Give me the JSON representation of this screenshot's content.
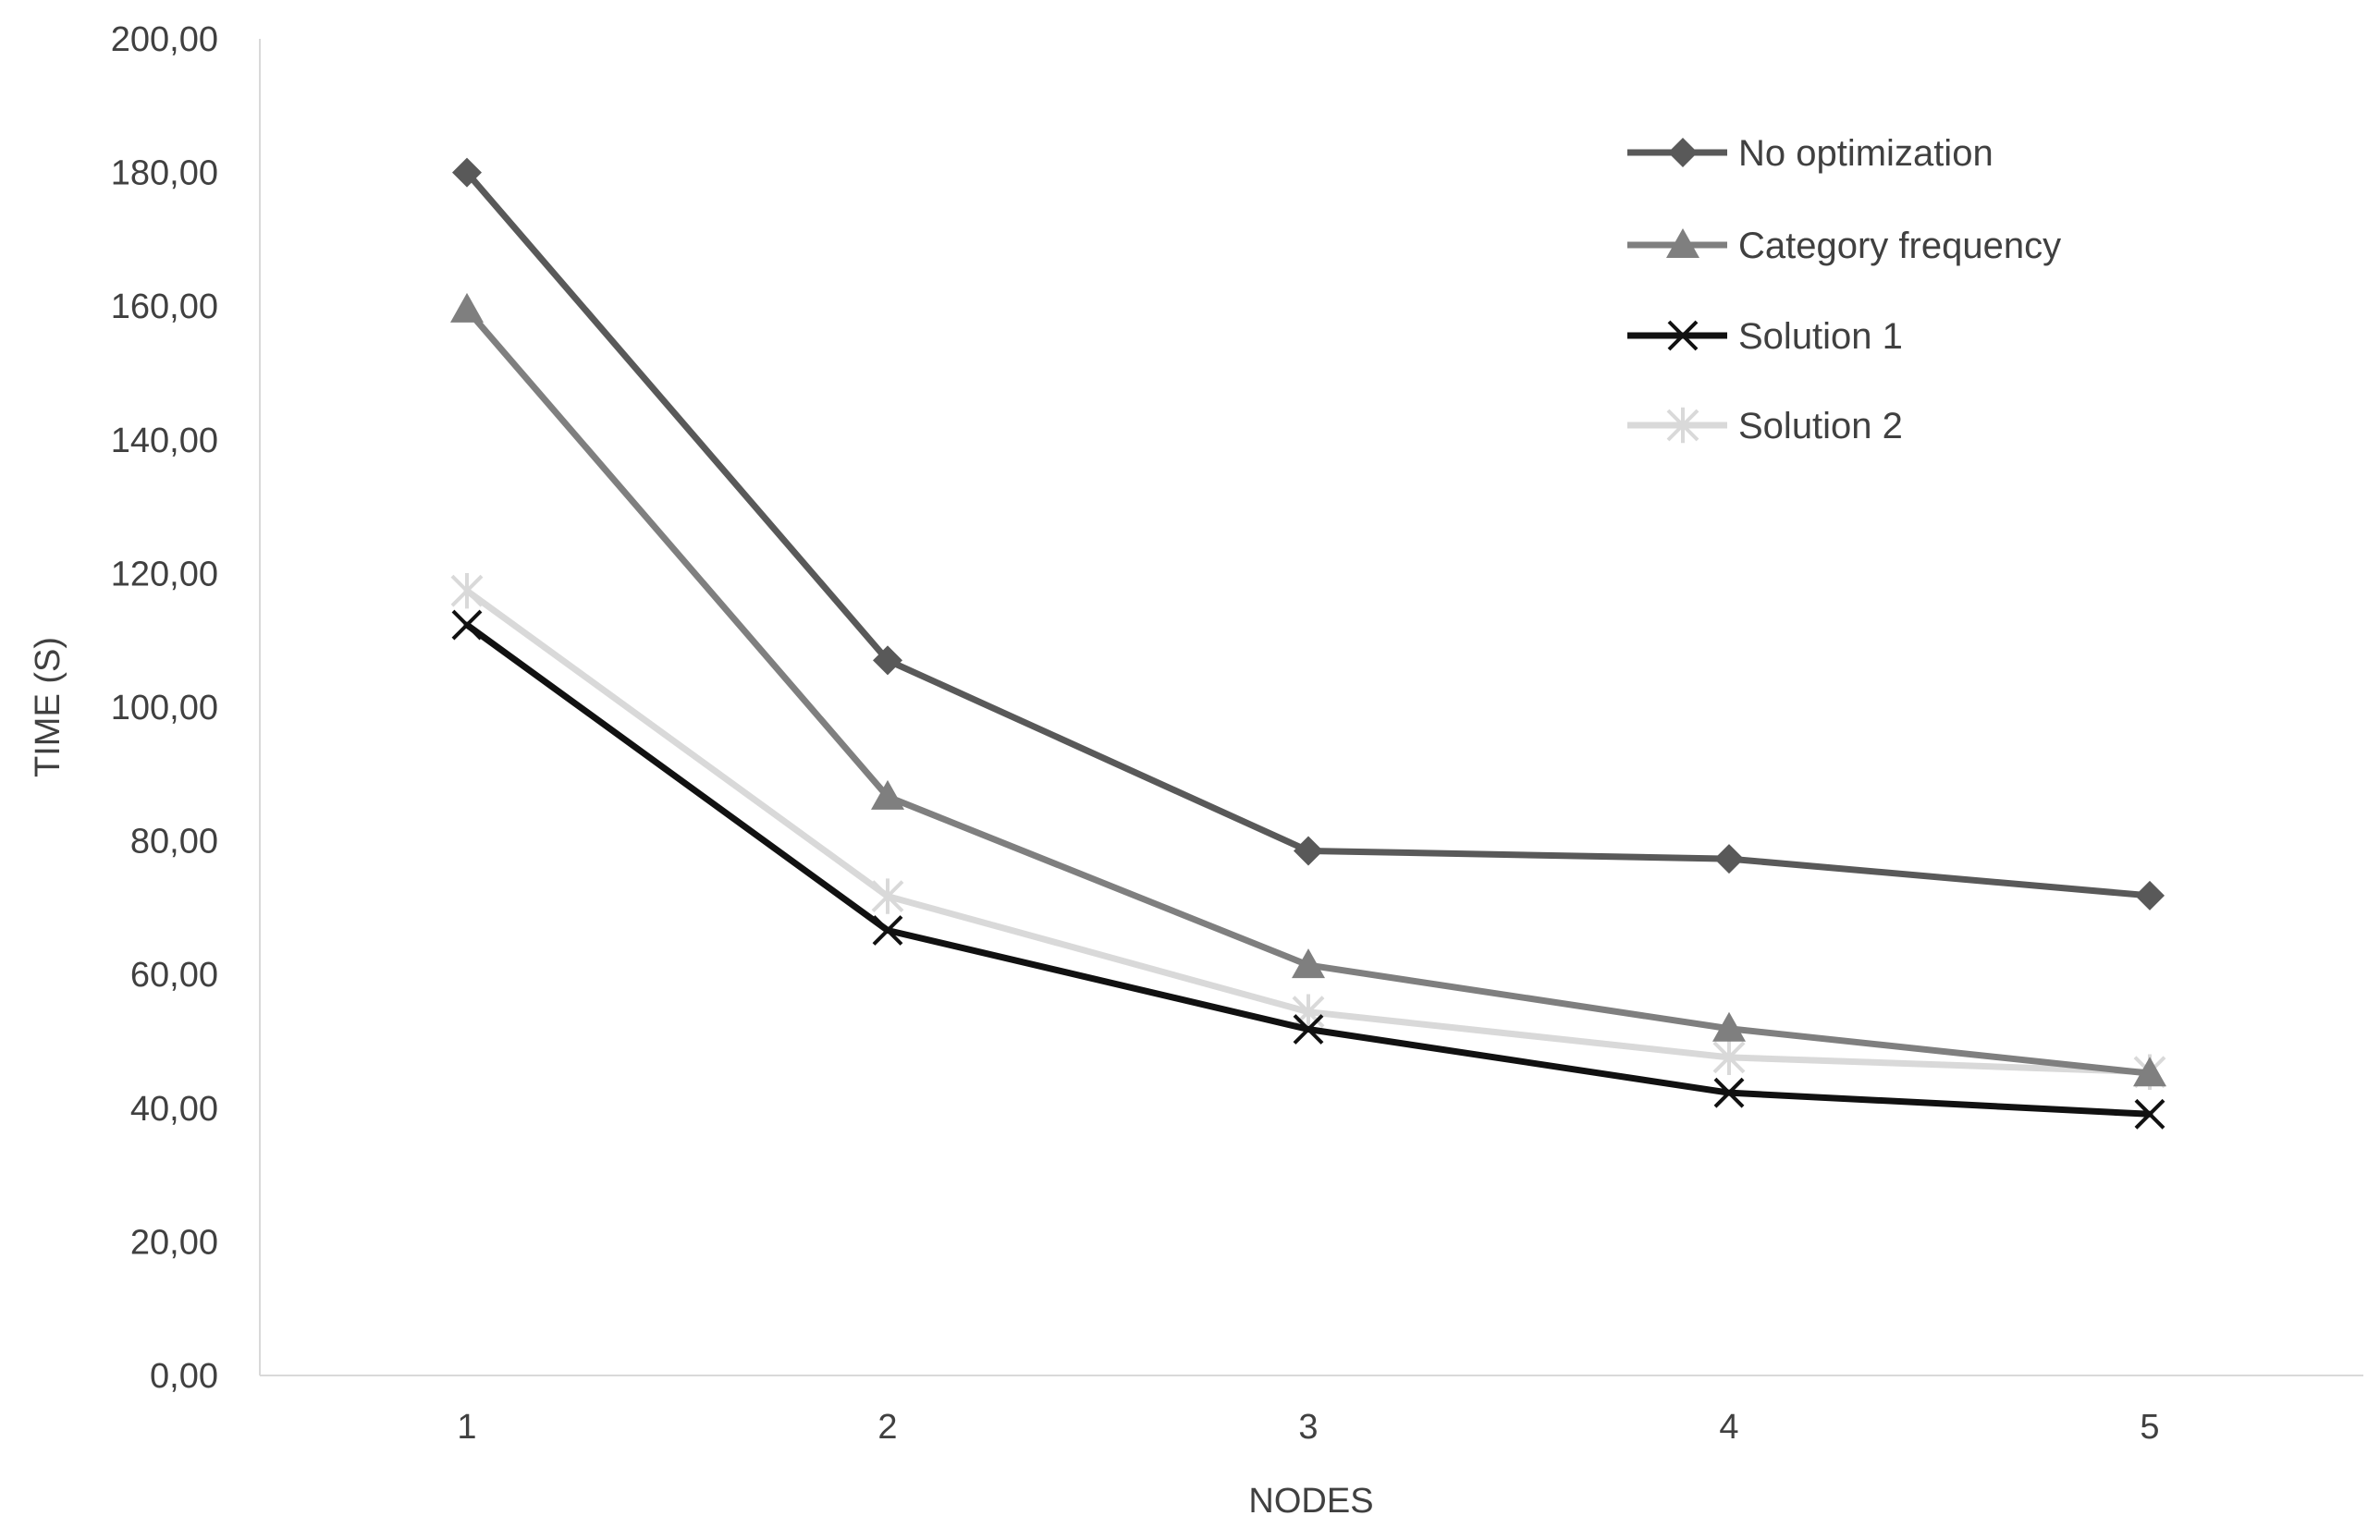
{
  "chart_data": {
    "type": "line",
    "title": "",
    "xlabel": "NODES",
    "ylabel": "TIME (S)",
    "categories": [
      "1",
      "2",
      "3",
      "4",
      "5"
    ],
    "ylim": [
      0,
      200
    ],
    "y_ticks": [
      "0,00",
      "20,00",
      "40,00",
      "60,00",
      "80,00",
      "100,00",
      "120,00",
      "140,00",
      "160,00",
      "180,00",
      "200,00"
    ],
    "grid": false,
    "legend_position": "top-right",
    "series": [
      {
        "name": "No optimization",
        "values": [
          180,
          107,
          78.5,
          77.3,
          71.8
        ],
        "color": "#595959",
        "marker": "diamond"
      },
      {
        "name": "Category frequency",
        "values": [
          159.5,
          86.6,
          61.4,
          51.9,
          45.2
        ],
        "color": "#7f7f7f",
        "marker": "triangle"
      },
      {
        "name": "Solution 1",
        "values": [
          112.3,
          66.6,
          51.8,
          42.3,
          39.1
        ],
        "color": "#111111",
        "marker": "x"
      },
      {
        "name": "Solution 2",
        "values": [
          117.4,
          71.7,
          54.4,
          47.6,
          45.4
        ],
        "color": "#d9d9d9",
        "marker": "star"
      }
    ]
  }
}
